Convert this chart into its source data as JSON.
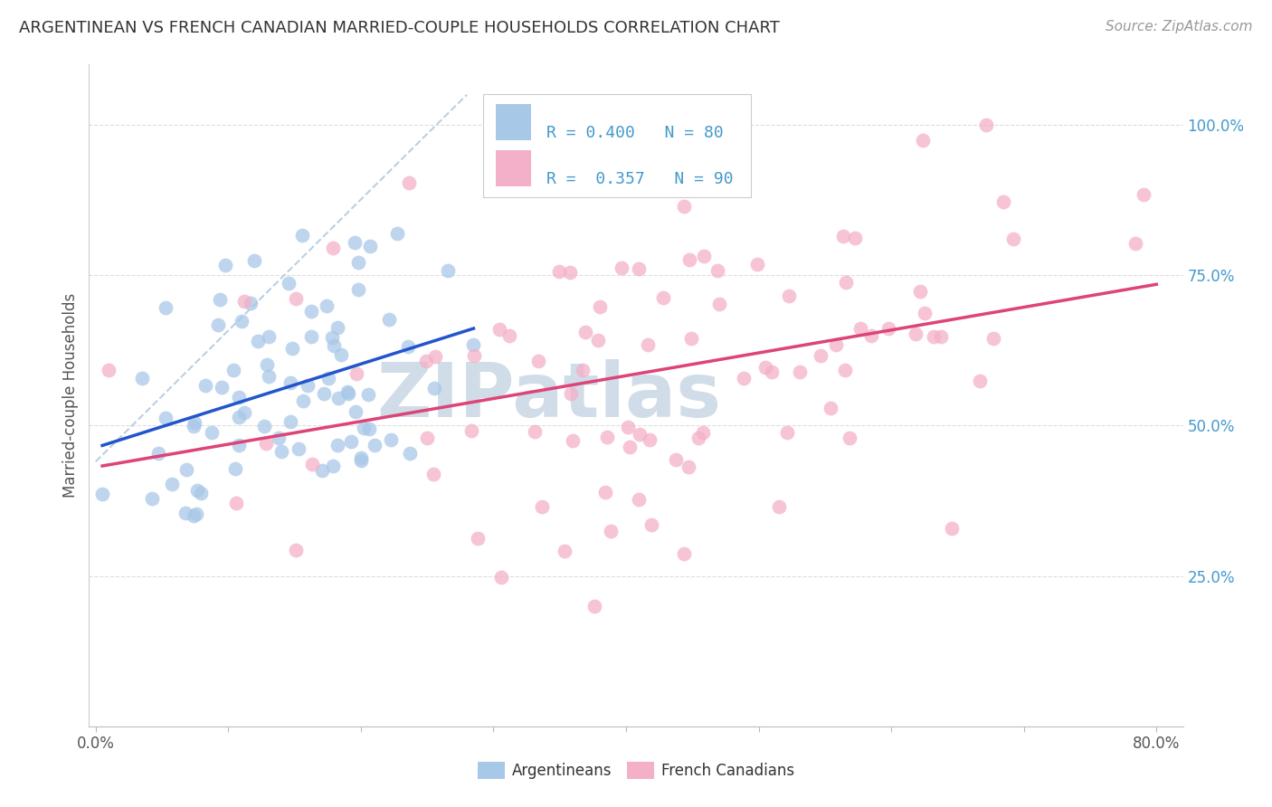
{
  "title": "ARGENTINEAN VS FRENCH CANADIAN MARRIED-COUPLE HOUSEHOLDS CORRELATION CHART",
  "source": "Source: ZipAtlas.com",
  "ylabel": "Married-couple Households",
  "legend_argentineans": "Argentineans",
  "legend_french": "French Canadians",
  "R_argentinean": 0.4,
  "N_argentinean": 80,
  "R_french": 0.357,
  "N_french": 90,
  "color_argentinean": "#a8c8e8",
  "color_french": "#f4b0c8",
  "line_color_argentinean": "#2255cc",
  "line_color_french": "#dd4477",
  "diagonal_color": "#aac4dd",
  "bg_color": "#ffffff",
  "grid_color": "#dddddd",
  "title_color": "#333333",
  "source_color": "#999999",
  "right_tick_color": "#4499cc",
  "watermark_color": "#d0dde8",
  "xlim": [
    -0.005,
    0.82
  ],
  "ylim": [
    0.0,
    1.1
  ],
  "x_ticks": [
    0.0,
    0.8
  ],
  "x_ticklabels": [
    "0.0%",
    "80.0%"
  ],
  "y_ticks": [
    0.25,
    0.5,
    0.75,
    1.0
  ],
  "y_ticklabels": [
    "25.0%",
    "50.0%",
    "75.0%",
    "100.0%"
  ]
}
